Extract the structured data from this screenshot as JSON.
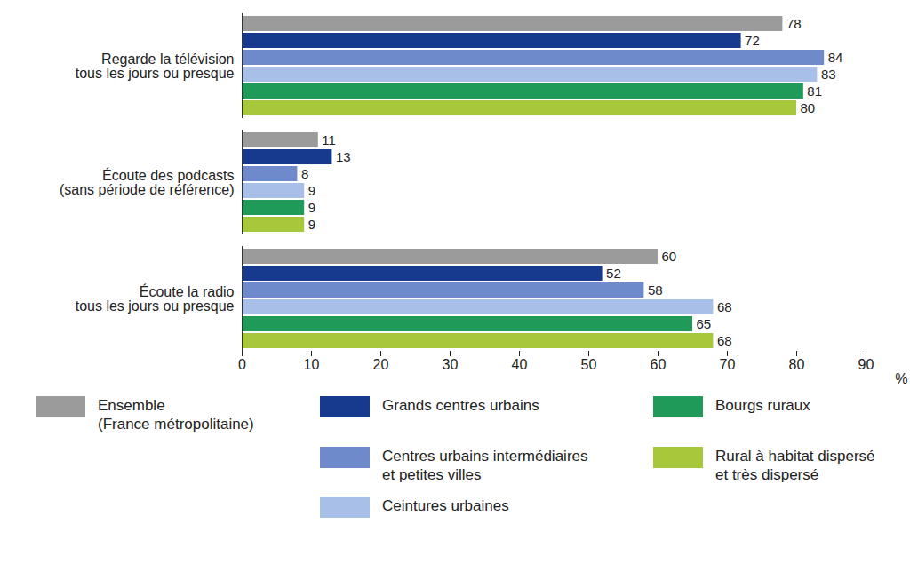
{
  "chart_data": {
    "type": "bar",
    "orientation": "horizontal",
    "categories": [
      "Regarde la télévision\ntous les jours ou presque",
      "Écoute des podcasts\n(sans période de référence)",
      "Écoute la radio\ntous les jours ou presque"
    ],
    "series": [
      {
        "name": "Ensemble\n(France métropolitaine)",
        "color": "#9b9b9b",
        "values": [
          78,
          11,
          60
        ]
      },
      {
        "name": "Grands centres urbains",
        "color": "#173a8e",
        "values": [
          72,
          13,
          52
        ]
      },
      {
        "name": "Centres urbains intermédiaires\net petites villes",
        "color": "#6e8acb",
        "values": [
          84,
          8,
          58
        ]
      },
      {
        "name": "Ceintures urbaines",
        "color": "#a8c0e8",
        "values": [
          83,
          9,
          68
        ]
      },
      {
        "name": "Bourgs ruraux",
        "color": "#1f9a58",
        "values": [
          81,
          9,
          65
        ]
      },
      {
        "name": "Rural à habitat dispersé\net très dispersé",
        "color": "#a8c83b",
        "values": [
          80,
          9,
          68
        ]
      }
    ],
    "xlabel": "%",
    "xlim": [
      0,
      90
    ],
    "xticks": [
      0,
      10,
      20,
      30,
      40,
      50,
      60,
      70,
      80,
      90
    ],
    "grid": false,
    "data_labels": true,
    "legend": "bottom"
  }
}
